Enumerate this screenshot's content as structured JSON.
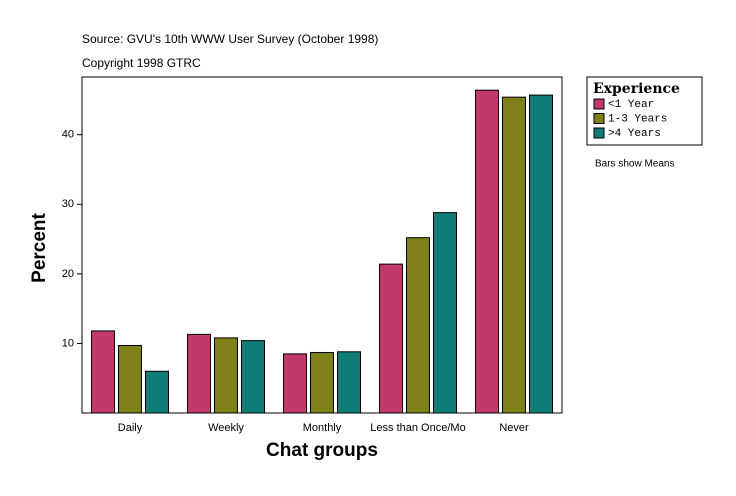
{
  "chart_data": {
    "type": "bar",
    "title": "Source: GVU's 10th WWW User Survey (October 1998)",
    "subtitle": "Copyright 1998 GTRC",
    "x_label": "Chat groups",
    "y_label": "Percent",
    "legend_title": "Experience",
    "annotation": "Bars show Means",
    "categories": [
      "Daily",
      "Weekly",
      "Monthly",
      "Less than Once/Mo",
      "Never"
    ],
    "series": [
      {
        "name": "<1 Year",
        "color": "#c0396a",
        "values": [
          11.8,
          11.3,
          8.5,
          21.4,
          46.4
        ]
      },
      {
        "name": "1-3 Years",
        "color": "#808018",
        "values": [
          9.7,
          10.8,
          8.7,
          25.2,
          45.4
        ]
      },
      {
        "name": ">4 Years",
        "color": "#107c78",
        "values": [
          6.0,
          10.4,
          8.8,
          28.8,
          45.7
        ]
      }
    ],
    "ylim": [
      0,
      48.3
    ],
    "yticks": [
      10,
      20,
      30,
      40
    ]
  }
}
